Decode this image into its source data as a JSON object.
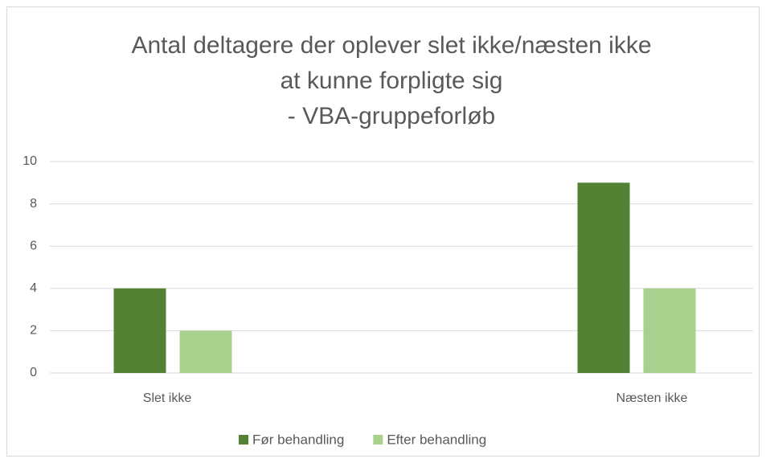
{
  "chart_data": {
    "type": "bar",
    "title": [
      "Antal deltagere der oplever slet ikke/næsten ikke",
      "at kunne forpligte sig",
      "- VBA-gruppeforløb"
    ],
    "categories": [
      "Slet ikke",
      "Næsten ikke"
    ],
    "series": [
      {
        "name": "Før behandling",
        "color": "#548235",
        "values": [
          4,
          9
        ]
      },
      {
        "name": "Efter behandling",
        "color": "#a9d18e",
        "values": [
          2,
          4
        ]
      }
    ],
    "ylim": [
      0,
      10
    ],
    "yticks": [
      0,
      2,
      4,
      6,
      8,
      10
    ],
    "grid": true,
    "legend": "bottom"
  }
}
